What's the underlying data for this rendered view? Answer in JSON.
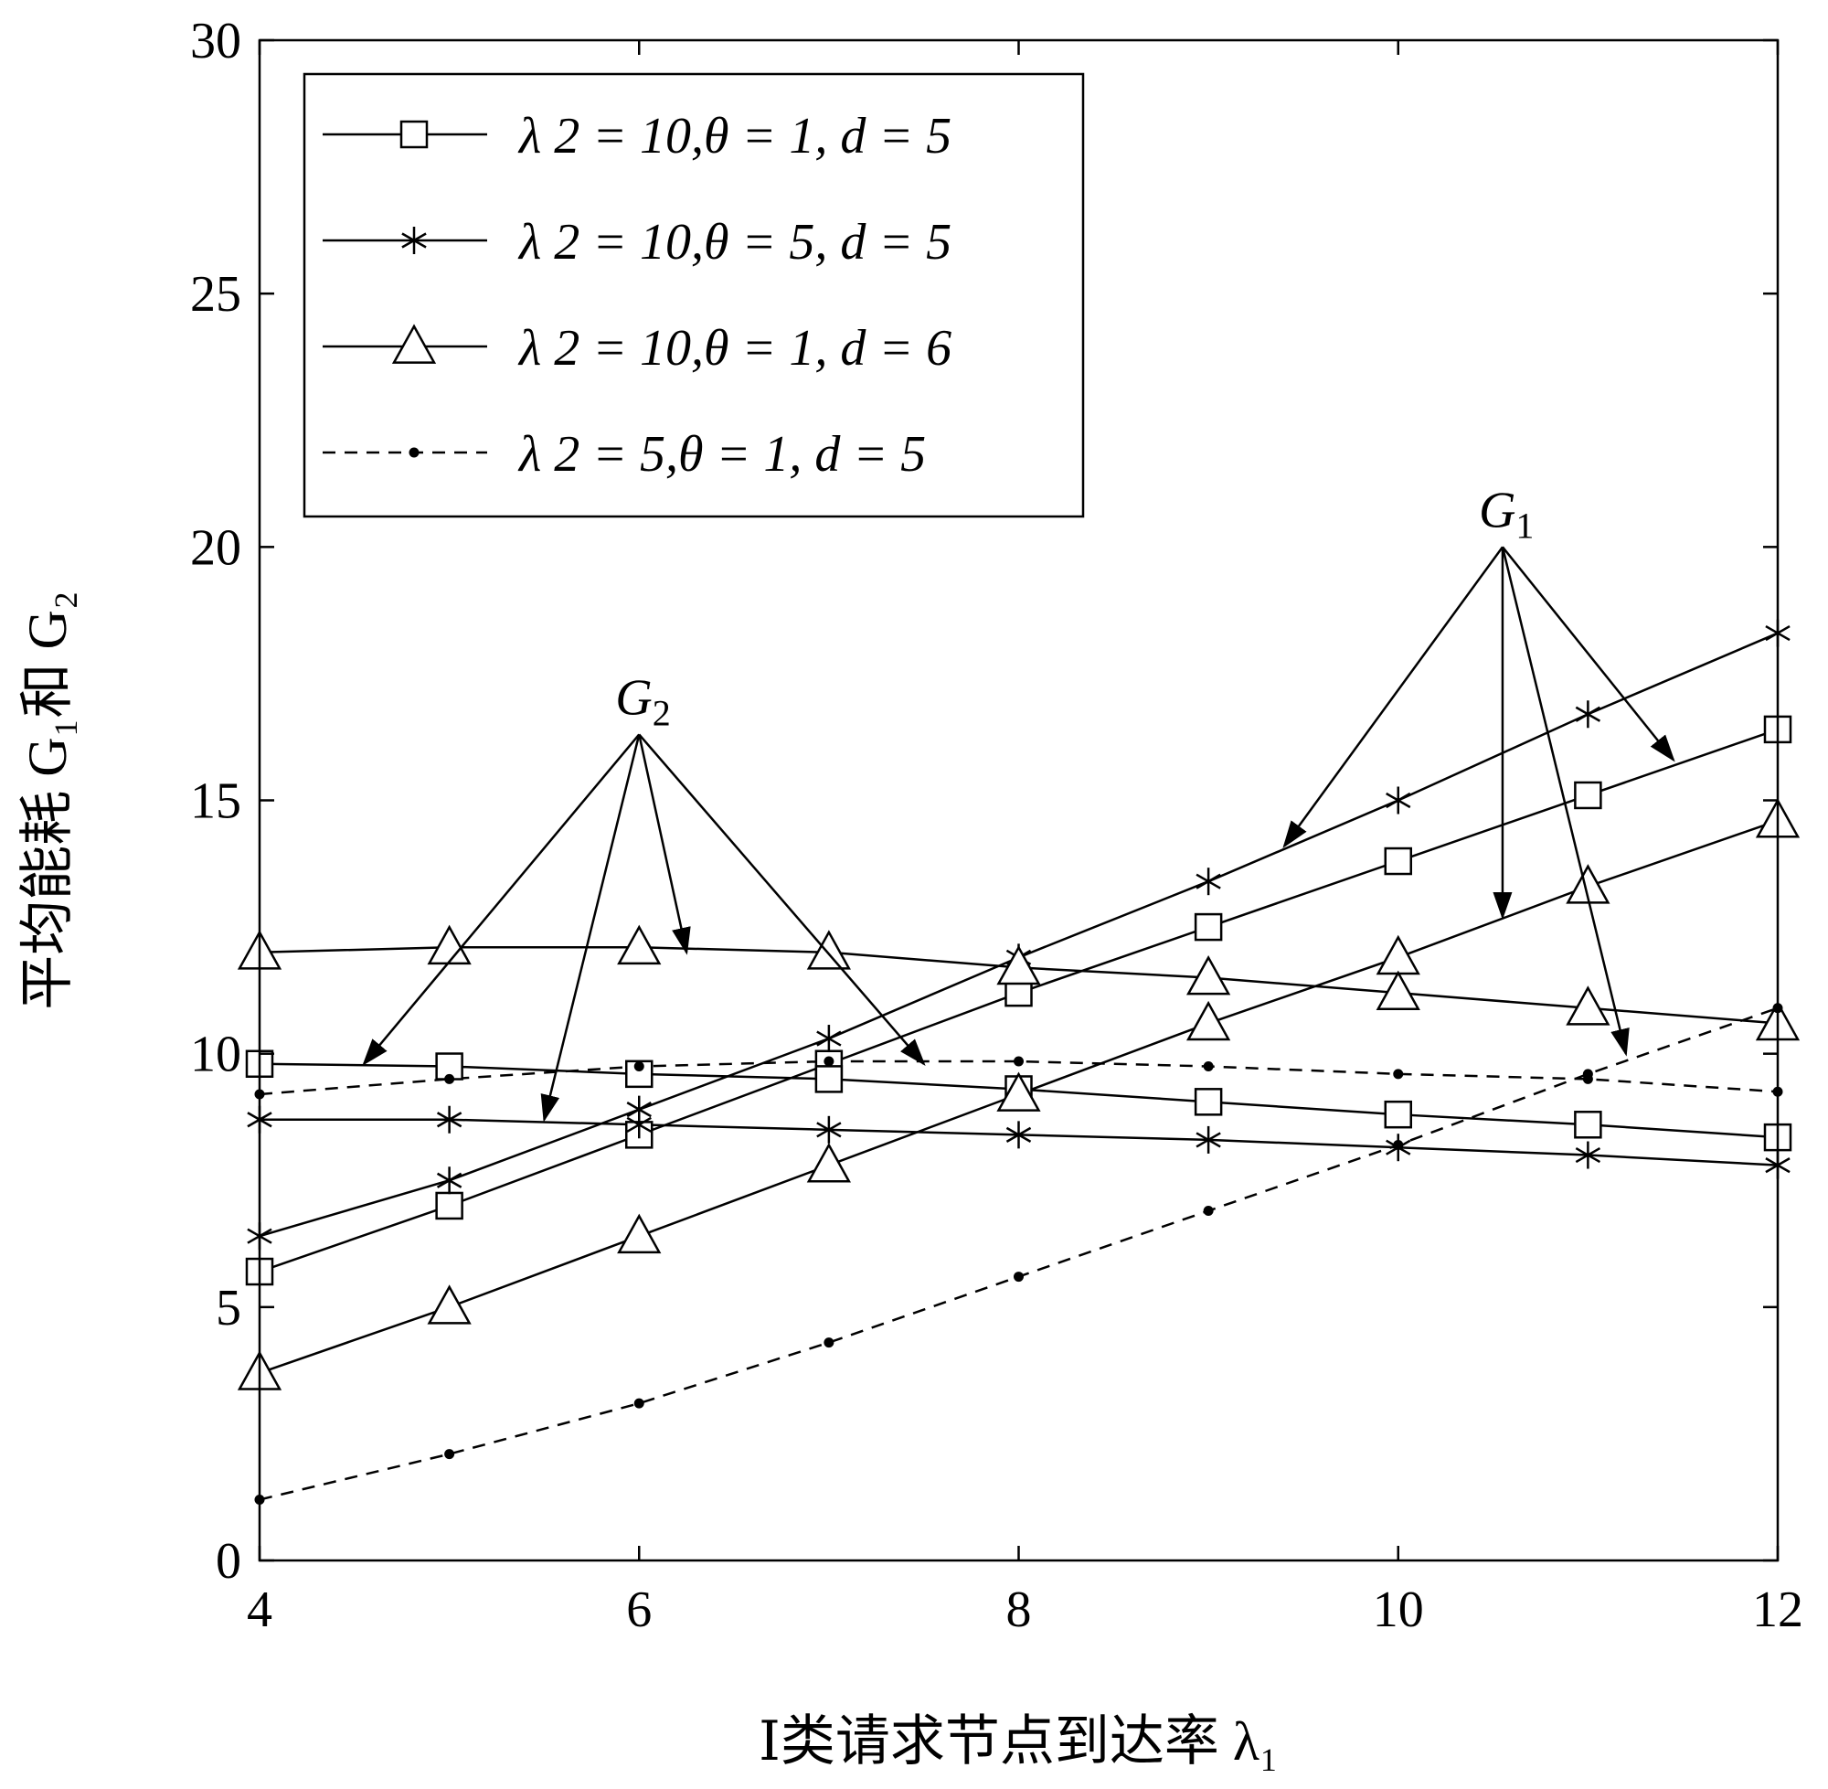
{
  "chart_data": {
    "type": "line",
    "xlabel": "Ⅰ类请求节点到达率 λ₁",
    "ylabel": "平均能耗 G₁和 G₂",
    "xlim": [
      4,
      12
    ],
    "ylim": [
      0,
      30
    ],
    "x_ticks": [
      4,
      6,
      8,
      10,
      12
    ],
    "y_ticks": [
      0,
      5,
      10,
      15,
      20,
      25,
      30
    ],
    "grid": false,
    "legend_position": "top-left",
    "x": [
      4,
      5,
      6,
      7,
      8,
      9,
      10,
      11,
      12
    ],
    "series": [
      {
        "name": "λ 2 = 10,θ = 1, d = 5",
        "marker": "square",
        "linestyle": "solid",
        "G1": [
          5.7,
          7.0,
          8.4,
          9.8,
          11.2,
          12.5,
          13.8,
          15.1,
          16.4
        ],
        "G2": [
          9.8,
          9.75,
          9.6,
          9.5,
          9.3,
          9.05,
          8.8,
          8.6,
          8.35
        ]
      },
      {
        "name": "λ 2 = 10,θ = 5, d = 5",
        "marker": "star",
        "linestyle": "solid",
        "G1": [
          6.4,
          7.5,
          8.9,
          10.3,
          11.9,
          13.4,
          15.0,
          16.7,
          18.3
        ],
        "G2": [
          8.7,
          8.7,
          8.6,
          8.5,
          8.4,
          8.3,
          8.15,
          8.0,
          7.8
        ]
      },
      {
        "name": "λ 2 = 10,θ = 1, d = 6",
        "marker": "triangle",
        "linestyle": "solid",
        "G1": [
          3.7,
          5.0,
          6.4,
          7.8,
          9.2,
          10.6,
          11.9,
          13.3,
          14.6
        ],
        "G2": [
          12.0,
          12.1,
          12.1,
          12.0,
          11.7,
          11.5,
          11.2,
          10.9,
          10.6
        ]
      },
      {
        "name": "λ 2 = 5,θ = 1, d = 5",
        "marker": "dot",
        "linestyle": "dashed",
        "G1": [
          1.2,
          2.1,
          3.1,
          4.3,
          5.6,
          6.9,
          8.2,
          9.6,
          10.9
        ],
        "G2": [
          9.2,
          9.5,
          9.75,
          9.85,
          9.85,
          9.75,
          9.6,
          9.5,
          9.25
        ]
      }
    ],
    "annotations": [
      {
        "label": "G2",
        "base": "G",
        "sub": "2",
        "origin": [
          6.0,
          16.3
        ],
        "arrows_to": [
          [
            4.55,
            9.8
          ],
          [
            5.5,
            8.7
          ],
          [
            6.25,
            12.0
          ],
          [
            7.5,
            9.8
          ]
        ]
      },
      {
        "label": "G1",
        "base": "G",
        "sub": "1",
        "origin": [
          10.55,
          20.0
        ],
        "arrows_to": [
          [
            9.4,
            14.1
          ],
          [
            10.55,
            12.7
          ],
          [
            11.45,
            15.8
          ],
          [
            11.2,
            10.0
          ]
        ]
      }
    ]
  }
}
